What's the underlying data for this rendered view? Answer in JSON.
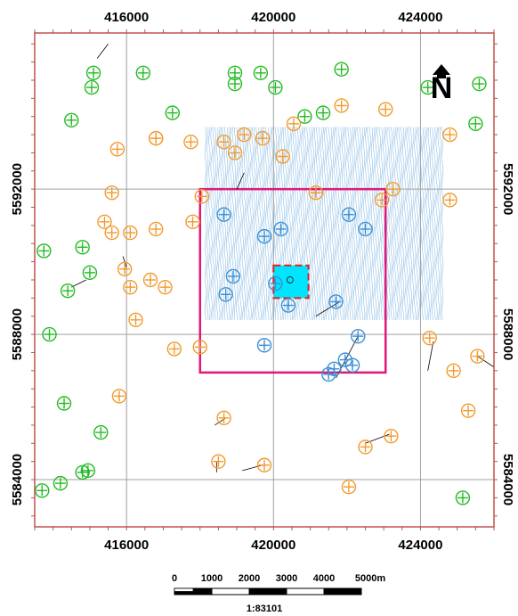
{
  "map": {
    "x_range": [
      413500,
      426000
    ],
    "y_range": [
      5582700,
      5596300
    ],
    "x_ticks": [
      416000,
      420000,
      424000
    ],
    "y_ticks": [
      5584000,
      5588000,
      5592000
    ],
    "x_tick_labels": [
      "416000",
      "420000",
      "424000"
    ],
    "y_tick_labels": [
      "5584000",
      "5588000",
      "5592000"
    ],
    "grid": true,
    "colors": {
      "frame": "#c0504d",
      "grid": "#a0a0a0",
      "green": "#22bb22",
      "orange": "#f29a2e",
      "blue": "#3a8fd6",
      "survey_hatch": "#7ab3e0",
      "boundary": "#e0187a",
      "target_fill": "#00e5ff",
      "target_outline": "#e02020"
    },
    "survey_area": {
      "x": [
        418150,
        424650
      ],
      "y": [
        5588350,
        5593700
      ]
    },
    "boundary_square": {
      "x": [
        418000,
        423050
      ],
      "y": [
        5586950,
        5592000
      ]
    },
    "target": {
      "x": [
        420000,
        420950
      ],
      "y": [
        5589000,
        5589900
      ]
    }
  },
  "north_arrow": {
    "label": "N",
    "icon": "north-arrow-icon"
  },
  "scale_bar": {
    "labels": [
      "0",
      "1000",
      "2000",
      "3000",
      "4000",
      "5000m"
    ],
    "segment_m": 1000,
    "ratio": "1:83101"
  },
  "points": {
    "green": [
      [
        415100,
        5595200
      ],
      [
        416450,
        5595200
      ],
      [
        418950,
        5595200
      ],
      [
        419650,
        5595200
      ],
      [
        421850,
        5595300
      ],
      [
        414500,
        5593900
      ],
      [
        415050,
        5594800
      ],
      [
        417250,
        5594100
      ],
      [
        418950,
        5594900
      ],
      [
        420050,
        5594800
      ],
      [
        420850,
        5594000
      ],
      [
        421350,
        5594100
      ],
      [
        424200,
        5594800
      ],
      [
        425600,
        5594900
      ],
      [
        425500,
        5593800
      ],
      [
        413750,
        5590300
      ],
      [
        414800,
        5590400
      ],
      [
        415000,
        5589700
      ],
      [
        414400,
        5589200
      ],
      [
        413900,
        5588000
      ],
      [
        414300,
        5586100
      ],
      [
        415300,
        5585300
      ],
      [
        414800,
        5584200
      ],
      [
        414950,
        5584250
      ],
      [
        414200,
        5583900
      ],
      [
        413700,
        5583700
      ],
      [
        425150,
        5583500
      ]
    ],
    "orange": [
      [
        415750,
        5593100
      ],
      [
        416800,
        5593400
      ],
      [
        416800,
        5593400
      ],
      [
        417750,
        5593300
      ],
      [
        418650,
        5593300
      ],
      [
        419200,
        5593500
      ],
      [
        418950,
        5593000
      ],
      [
        419700,
        5593400
      ],
      [
        420250,
        5592900
      ],
      [
        420550,
        5593800
      ],
      [
        421850,
        5594300
      ],
      [
        423050,
        5594200
      ],
      [
        424800,
        5593500
      ],
      [
        415600,
        5591900
      ],
      [
        415400,
        5591100
      ],
      [
        415600,
        5590800
      ],
      [
        416100,
        5590800
      ],
      [
        416800,
        5590900
      ],
      [
        417800,
        5591100
      ],
      [
        418050,
        5591800
      ],
      [
        421150,
        5591900
      ],
      [
        422950,
        5591700
      ],
      [
        423250,
        5592000
      ],
      [
        424800,
        5591700
      ],
      [
        415950,
        5589800
      ],
      [
        416100,
        5589300
      ],
      [
        416650,
        5589500
      ],
      [
        417050,
        5589300
      ],
      [
        416250,
        5588400
      ],
      [
        417300,
        5587600
      ],
      [
        418000,
        5587650
      ],
      [
        424250,
        5587900
      ],
      [
        424900,
        5587000
      ],
      [
        425550,
        5587400
      ],
      [
        415800,
        5586300
      ],
      [
        418650,
        5585700
      ],
      [
        425300,
        5585900
      ],
      [
        422500,
        5584900
      ],
      [
        423200,
        5585200
      ],
      [
        418500,
        5584500
      ],
      [
        419750,
        5584400
      ],
      [
        422050,
        5583800
      ]
    ],
    "blue": [
      [
        418650,
        5591300
      ],
      [
        419750,
        5590700
      ],
      [
        420200,
        5590900
      ],
      [
        422050,
        5591300
      ],
      [
        422500,
        5590900
      ],
      [
        418900,
        5589600
      ],
      [
        418700,
        5589100
      ],
      [
        420050,
        5589400
      ],
      [
        420400,
        5588800
      ],
      [
        421700,
        5588900
      ],
      [
        419750,
        5587700
      ],
      [
        422300,
        5587950
      ],
      [
        421950,
        5587300
      ],
      [
        421650,
        5587050
      ],
      [
        422150,
        5587150
      ],
      [
        421500,
        5586900
      ]
    ]
  },
  "tick_lines": [
    [
      [
        415200,
        5595600
      ],
      [
        415500,
        5596000
      ]
    ],
    [
      [
        419200,
        5592450
      ],
      [
        419000,
        5592000
      ]
    ],
    [
      [
        424350,
        5587800
      ],
      [
        424200,
        5587000
      ]
    ],
    [
      [
        414500,
        5589300
      ],
      [
        414900,
        5589500
      ]
    ],
    [
      [
        421800,
        5588900
      ],
      [
        421150,
        5588500
      ]
    ],
    [
      [
        422300,
        5587950
      ],
      [
        421700,
        5586800
      ]
    ],
    [
      [
        422500,
        5585000
      ],
      [
        423150,
        5585250
      ]
    ],
    [
      [
        418450,
        5584500
      ],
      [
        418450,
        5584200
      ]
    ],
    [
      [
        419700,
        5584400
      ],
      [
        419150,
        5584250
      ]
    ],
    [
      [
        418700,
        5585700
      ],
      [
        418400,
        5585500
      ]
    ],
    [
      [
        416000,
        5589850
      ],
      [
        415900,
        5590150
      ]
    ],
    [
      [
        425550,
        5587400
      ],
      [
        426000,
        5587100
      ]
    ]
  ]
}
